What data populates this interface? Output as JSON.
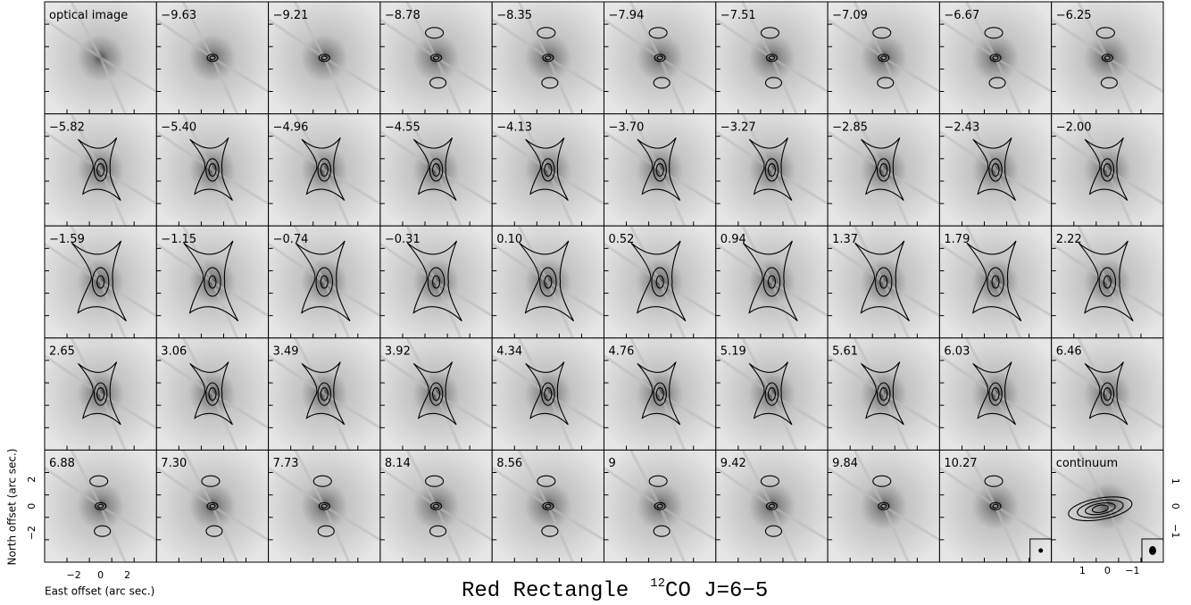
{
  "panels": [
    "optical image",
    "−9.63",
    "−9.21",
    "−8.78",
    "−8.35",
    "−7.94",
    "−7.51",
    "−7.09",
    "−6.67",
    "−6.25",
    "−5.82",
    "−5.40",
    "−4.96",
    "−4.55",
    "−4.13",
    "−3.70",
    "−3.27",
    "−2.85",
    "−2.43",
    "−2.00",
    "−1.59",
    "−1.15",
    "−0.74",
    "−0.31",
    "0.10",
    "0.52",
    "0.94",
    "1.37",
    "1.79",
    "2.22",
    "2.65",
    "3.06",
    "3.49",
    "3.92",
    "4.34",
    "4.76",
    "5.19",
    "5.61",
    "6.03",
    "6.46",
    "6.88",
    "7.30",
    "7.73",
    "8.14",
    "8.56",
    "9",
    "9.42",
    "9.84",
    "10.27",
    "continuum"
  ],
  "axes": {
    "y_label": "North offset (arc sec.)",
    "x_label": "East offset (arc sec.)",
    "x_ticks": [
      "2",
      "0",
      "−2"
    ],
    "y_ticks": [
      "2",
      "0",
      "−2"
    ],
    "continuum_x_ticks": [
      "1",
      "0",
      "−1"
    ],
    "continuum_y_ticks": [
      "1",
      "0",
      "−1"
    ]
  },
  "title": {
    "text": "Red Rectangle",
    "superscript": "12",
    "suffix": "CO J=6−5"
  }
}
